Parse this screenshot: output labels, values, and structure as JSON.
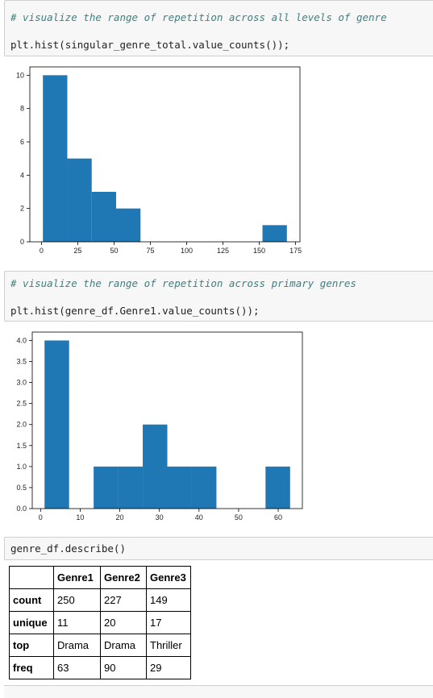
{
  "cells": [
    {
      "comment": "# visualize the range of repetition across all levels of genre",
      "code": "plt.hist(singular_genre_total.value_counts());"
    },
    {
      "comment": "# visualize the range of repetition across primary genres",
      "code": "plt.hist(genre_df.Genre1.value_counts());"
    },
    {
      "code": "genre_df.describe()"
    }
  ],
  "chart_data": [
    {
      "type": "bar",
      "bins": [
        [
          1,
          17.8
        ],
        [
          17.8,
          34.6
        ],
        [
          34.6,
          51.4
        ],
        [
          51.4,
          68.2
        ],
        [
          68.2,
          85
        ],
        [
          85,
          101.8
        ],
        [
          101.8,
          118.6
        ],
        [
          118.6,
          135.4
        ],
        [
          135.4,
          152.2
        ],
        [
          152.2,
          169
        ]
      ],
      "values": [
        10,
        5,
        3,
        2,
        0,
        0,
        0,
        0,
        0,
        1
      ],
      "xticks": [
        "0",
        "25",
        "50",
        "75",
        "100",
        "125",
        "150",
        "175"
      ],
      "yticks": [
        "0",
        "2",
        "4",
        "6",
        "8",
        "10"
      ],
      "xlim": [
        -8,
        178
      ],
      "ylim": [
        0,
        10.5
      ],
      "color": "#1f77b4"
    },
    {
      "type": "bar",
      "bins": [
        [
          1,
          7.2
        ],
        [
          7.2,
          13.4
        ],
        [
          13.4,
          19.6
        ],
        [
          19.6,
          25.8
        ],
        [
          25.8,
          32
        ],
        [
          32,
          38.2
        ],
        [
          38.2,
          44.4
        ],
        [
          44.4,
          50.6
        ],
        [
          50.6,
          56.8
        ],
        [
          56.8,
          63
        ]
      ],
      "values": [
        4,
        0,
        1,
        1,
        2,
        1,
        1,
        0,
        0,
        1
      ],
      "xticks": [
        "0",
        "10",
        "20",
        "30",
        "40",
        "50",
        "60"
      ],
      "yticks": [
        "0.0",
        "0.5",
        "1.0",
        "1.5",
        "2.0",
        "2.5",
        "3.0",
        "3.5",
        "4.0"
      ],
      "xlim": [
        -2.1,
        66.1
      ],
      "ylim": [
        0,
        4.2
      ],
      "color": "#1f77b4"
    }
  ],
  "table": {
    "columns": [
      "",
      "Genre1",
      "Genre2",
      "Genre3"
    ],
    "rows": [
      [
        "count",
        "250",
        "227",
        "149"
      ],
      [
        "unique",
        "11",
        "20",
        "17"
      ],
      [
        "top",
        "Drama",
        "Drama",
        "Thriller"
      ],
      [
        "freq",
        "63",
        "90",
        "29"
      ]
    ]
  }
}
